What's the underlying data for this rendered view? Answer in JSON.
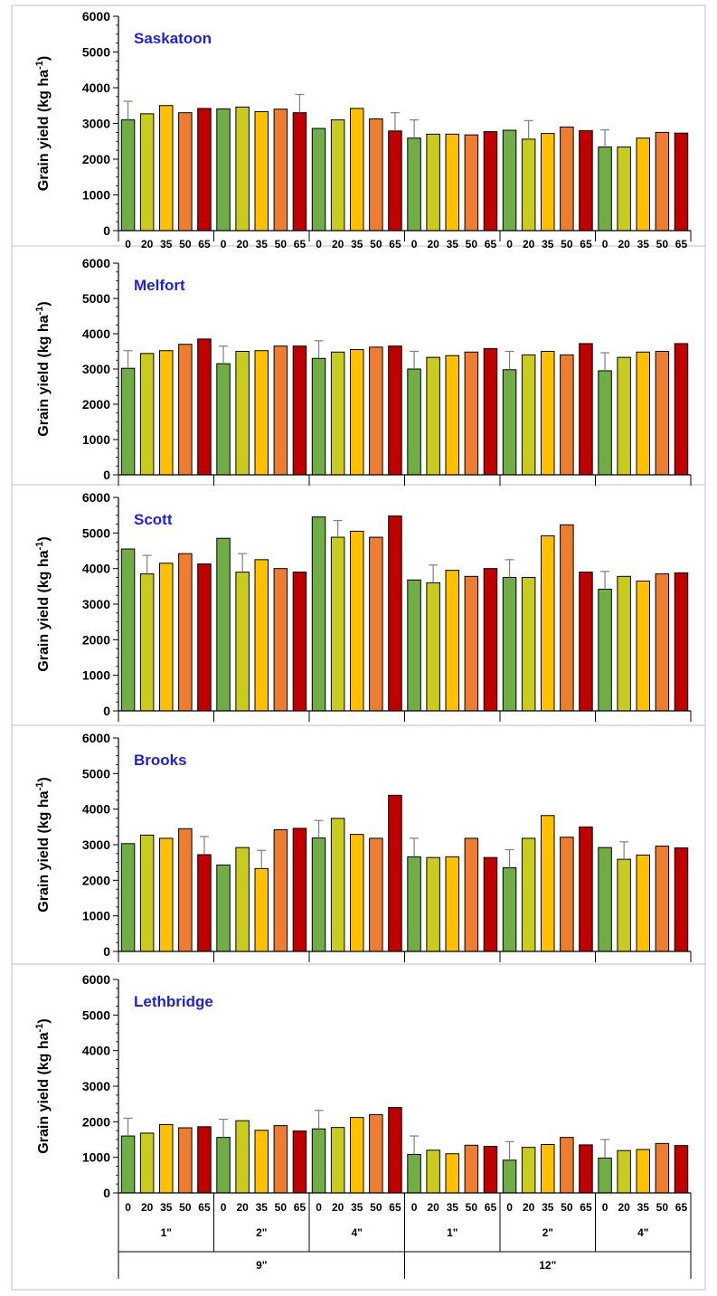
{
  "chart_data": [
    {
      "type": "bar",
      "title": "Saskatoon",
      "ylabel": "Grain yield (kg ha-1)",
      "ylim": [
        0,
        6000
      ],
      "yticks": [
        0,
        1000,
        2000,
        3000,
        4000,
        5000,
        6000
      ],
      "values": [
        3100,
        3270,
        3500,
        3300,
        3420,
        3410,
        3460,
        3330,
        3400,
        3300,
        2860,
        3100,
        3420,
        3130,
        2790,
        2590,
        2700,
        2700,
        2680,
        2770,
        2810,
        2560,
        2720,
        2900,
        2800,
        2340,
        2340,
        2590,
        2750,
        2730
      ],
      "errors": [
        3620,
        null,
        null,
        null,
        null,
        null,
        null,
        null,
        null,
        3810,
        null,
        null,
        null,
        null,
        3300,
        3100,
        null,
        null,
        null,
        null,
        null,
        3080,
        null,
        null,
        null,
        2820,
        null,
        null,
        null,
        null
      ]
    },
    {
      "type": "bar",
      "title": "Melfort",
      "ylabel": "Grain yield (kg ha-1)",
      "ylim": [
        0,
        6000
      ],
      "yticks": [
        0,
        1000,
        2000,
        3000,
        4000,
        5000,
        6000
      ],
      "values": [
        3020,
        3440,
        3520,
        3700,
        3850,
        3150,
        3500,
        3520,
        3650,
        3650,
        3300,
        3480,
        3550,
        3620,
        3650,
        3000,
        3330,
        3380,
        3480,
        3580,
        2980,
        3400,
        3500,
        3400,
        3720,
        2950,
        3330,
        3480,
        3500,
        3720
      ],
      "errors": [
        3520,
        null,
        null,
        null,
        null,
        3650,
        null,
        null,
        null,
        null,
        3800,
        null,
        null,
        null,
        null,
        3500,
        null,
        null,
        null,
        null,
        3500,
        null,
        null,
        null,
        null,
        3460,
        null,
        null,
        null,
        null
      ]
    },
    {
      "type": "bar",
      "title": "Scott",
      "ylabel": "Grain yield (kg ha-1)",
      "ylim": [
        0,
        6000
      ],
      "yticks": [
        0,
        1000,
        2000,
        3000,
        4000,
        5000,
        6000
      ],
      "values": [
        4550,
        3850,
        4150,
        4420,
        4130,
        4850,
        3900,
        4250,
        4000,
        3900,
        5450,
        4880,
        5050,
        4880,
        5480,
        3680,
        3600,
        3950,
        3780,
        4000,
        3750,
        3750,
        4920,
        5230,
        3900,
        3420,
        3780,
        3650,
        3850,
        3880
      ],
      "errors": [
        null,
        4370,
        null,
        null,
        null,
        null,
        4420,
        null,
        null,
        null,
        null,
        5350,
        null,
        null,
        null,
        null,
        4100,
        null,
        null,
        null,
        4250,
        null,
        null,
        null,
        null,
        3920,
        null,
        null,
        null,
        null
      ]
    },
    {
      "type": "bar",
      "title": "Brooks",
      "ylabel": "Grain yield (kg ha-1)",
      "ylim": [
        0,
        6000
      ],
      "yticks": [
        0,
        1000,
        2000,
        3000,
        4000,
        5000,
        6000
      ],
      "values": [
        3030,
        3270,
        3180,
        3450,
        2720,
        2430,
        2920,
        2330,
        3420,
        3460,
        3190,
        3740,
        3290,
        3180,
        4390,
        2660,
        2640,
        2660,
        3180,
        2640,
        2350,
        3180,
        3820,
        3210,
        3500,
        2920,
        2590,
        2710,
        2960,
        2910
      ],
      "errors": [
        null,
        null,
        null,
        null,
        3230,
        null,
        null,
        2840,
        null,
        null,
        3680,
        null,
        null,
        null,
        null,
        3180,
        null,
        null,
        null,
        null,
        2860,
        null,
        null,
        null,
        null,
        null,
        3080,
        null,
        null,
        null
      ]
    },
    {
      "type": "bar",
      "title": "Lethbridge",
      "ylabel": "Grain yield (kg ha-1)",
      "ylim": [
        0,
        6000
      ],
      "yticks": [
        0,
        1000,
        2000,
        3000,
        4000,
        5000,
        6000
      ],
      "values": [
        1600,
        1680,
        1920,
        1830,
        1860,
        1560,
        2030,
        1760,
        1890,
        1740,
        1800,
        1840,
        2120,
        2200,
        2400,
        1080,
        1200,
        1100,
        1340,
        1310,
        920,
        1280,
        1360,
        1560,
        1350,
        980,
        1190,
        1220,
        1390,
        1330
      ],
      "errors": [
        2100,
        null,
        null,
        null,
        null,
        2070,
        null,
        null,
        null,
        null,
        2320,
        null,
        null,
        null,
        null,
        1600,
        null,
        null,
        null,
        null,
        1440,
        null,
        null,
        null,
        null,
        1500,
        null,
        null,
        null,
        null
      ]
    }
  ],
  "x_axis": {
    "level1": [
      "0",
      "20",
      "35",
      "50",
      "65"
    ],
    "level2": [
      "1\"",
      "2\"",
      "4\"",
      "1\"",
      "2\"",
      "4\""
    ],
    "level3": [
      "9\"",
      "12\""
    ]
  },
  "colors": [
    "#70ad47",
    "#c9cc1e",
    "#ffc000",
    "#ed7d31",
    "#c00000"
  ]
}
